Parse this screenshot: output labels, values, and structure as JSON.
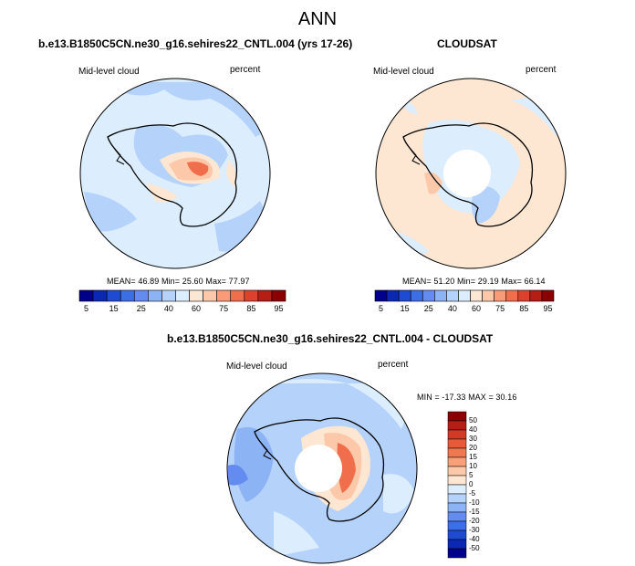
{
  "main_title": "ANN",
  "panels": [
    {
      "title": "b.e13.B1850C5CN.ne30_g16.sehires22_CNTL.004 (yrs 17-26)",
      "left_label": "Mid-level cloud",
      "right_label": "percent",
      "stats": "MEAN=  46.89  Min=  25.60  Max=  77.97"
    },
    {
      "title": "CLOUDSAT",
      "left_label": "Mid-level cloud",
      "right_label": "percent",
      "stats": "MEAN=  51.20  Min=  29.19  Max=  66.14"
    },
    {
      "title": "b.e13.B1850C5CN.ne30_g16.sehires22_CNTL.004 - CLOUDSAT",
      "left_label": "Mid-level cloud",
      "right_label": "percent",
      "stats": "MIN = -17.33 MAX =  30.16"
    }
  ],
  "colorbar_abs": {
    "labels": [
      "5",
      "15",
      "25",
      "40",
      "60",
      "75",
      "85",
      "95"
    ],
    "colors": [
      "#00008b",
      "#0a28b4",
      "#1e4bd2",
      "#3c6ee6",
      "#648cf0",
      "#8cb4f5",
      "#b4d2fa",
      "#dceefe",
      "#fde6d2",
      "#fcc8aa",
      "#fa9b78",
      "#f06e4b",
      "#dc412d",
      "#b41e14",
      "#8b0000"
    ]
  },
  "colorbar_diff": {
    "labels": [
      "50",
      "40",
      "30",
      "20",
      "15",
      "10",
      "5",
      "0",
      "-5",
      "-10",
      "-15",
      "-20",
      "-30",
      "-40",
      "-50"
    ],
    "colors": [
      "#8b0000",
      "#b41e14",
      "#d23a23",
      "#e65a37",
      "#f07850",
      "#f8a078",
      "#fcc8aa",
      "#fde6d2",
      "#dceefe",
      "#b4d2fa",
      "#8cb4f5",
      "#648cf0",
      "#3c6ee6",
      "#1e4bd2",
      "#0a28b4",
      "#00008b"
    ]
  },
  "chart_data": [
    {
      "type": "heatmap",
      "title": "b.e13.B1850C5CN.ne30_g16.sehires22_CNTL.004 (yrs 17-26)",
      "subtitle": "ANN",
      "variable": "Mid-level cloud",
      "units": "percent",
      "projection": "south polar stereographic",
      "mean": 46.89,
      "min": 25.6,
      "max": 77.97,
      "contour_levels": [
        5,
        10,
        15,
        20,
        25,
        30,
        40,
        50,
        60,
        65,
        70,
        75,
        80,
        85,
        90,
        95
      ]
    },
    {
      "type": "heatmap",
      "title": "CLOUDSAT",
      "subtitle": "ANN",
      "variable": "Mid-level cloud",
      "units": "percent",
      "projection": "south polar stereographic",
      "mean": 51.2,
      "min": 29.19,
      "max": 66.14,
      "contour_levels": [
        5,
        10,
        15,
        20,
        25,
        30,
        40,
        50,
        60,
        65,
        70,
        75,
        80,
        85,
        90,
        95
      ]
    },
    {
      "type": "heatmap",
      "title": "b.e13.B1850C5CN.ne30_g16.sehires22_CNTL.004 - CLOUDSAT",
      "variable": "Mid-level cloud",
      "units": "percent",
      "projection": "south polar stereographic",
      "min": -17.33,
      "max": 30.16,
      "contour_levels": [
        -50,
        -40,
        -30,
        -20,
        -15,
        -10,
        -5,
        0,
        5,
        10,
        15,
        20,
        30,
        40,
        50
      ]
    }
  ]
}
